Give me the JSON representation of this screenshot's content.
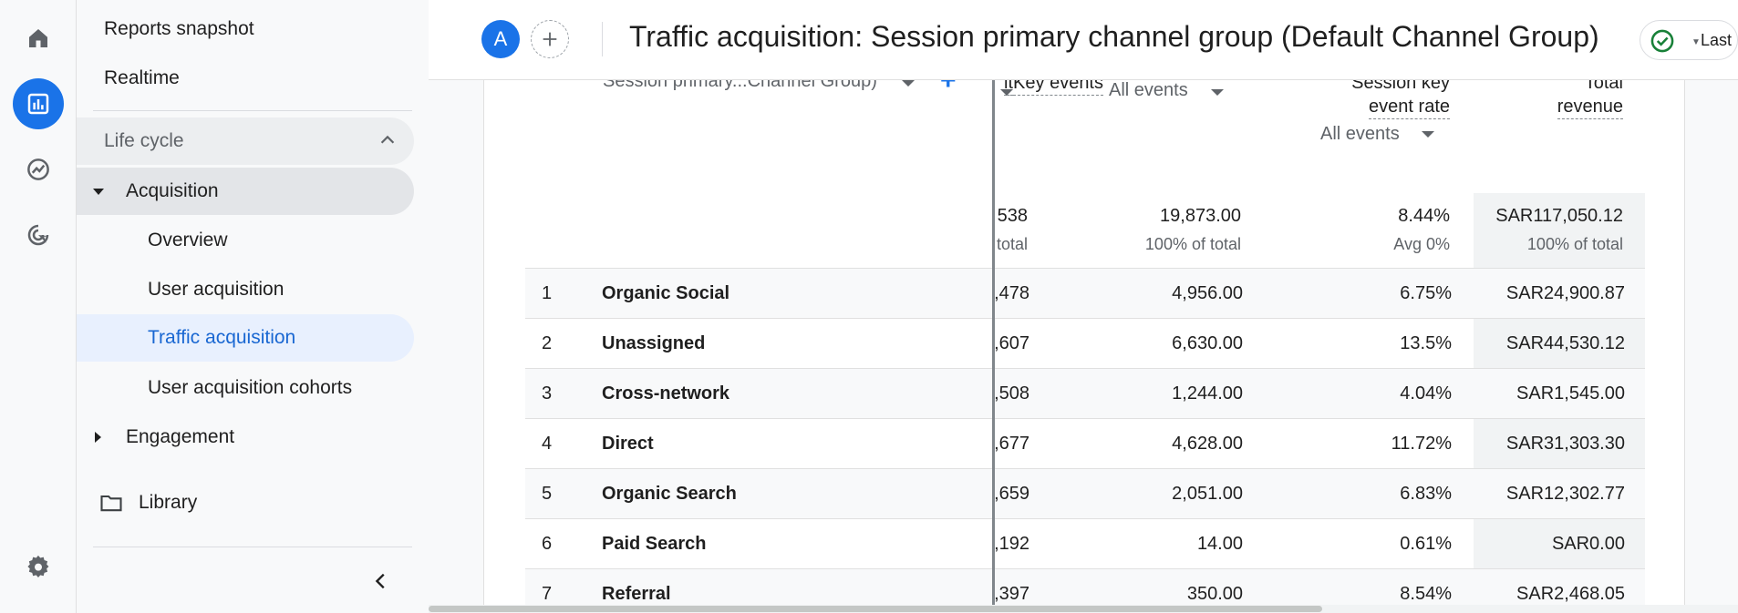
{
  "rail": {
    "items": [
      {
        "name": "home-icon"
      },
      {
        "name": "reports-icon"
      },
      {
        "name": "explore-icon"
      },
      {
        "name": "advertising-icon"
      },
      {
        "name": "settings-icon"
      }
    ]
  },
  "nav": {
    "reports_snapshot": "Reports snapshot",
    "realtime": "Realtime",
    "lifecycle": "Life cycle",
    "acquisition": "Acquisition",
    "sub_items": [
      "Overview",
      "User acquisition",
      "Traffic acquisition",
      "User acquisition cohorts"
    ],
    "selected": "Traffic acquisition",
    "engagement": "Engagement",
    "library": "Library"
  },
  "header": {
    "avatar_letter": "A",
    "title": "Traffic acquisition: Session primary channel group (Default Channel Group)",
    "status_text": "Last"
  },
  "table": {
    "dimension_header": "Session primary...Channel Group)",
    "col_partial_header": "it",
    "key_events_header": "Key events",
    "key_events_filter": "All events",
    "rate_header_line1": "Session key",
    "rate_header_line2": "event rate",
    "rate_filter": "All events",
    "revenue_header_line1": "Total",
    "revenue_header_line2": "revenue",
    "totals": {
      "partial": "538",
      "partial_sub": "total",
      "key_events": "19,873.00",
      "key_events_sub": "100% of total",
      "rate": "8.44%",
      "rate_sub": "Avg 0%",
      "revenue": "SAR117,050.12",
      "revenue_sub": "100% of total"
    },
    "rows": [
      {
        "idx": "1",
        "channel": "Organic Social",
        "partial": ",478",
        "key_events": "4,956.00",
        "rate": "6.75%",
        "revenue": "SAR24,900.87"
      },
      {
        "idx": "2",
        "channel": "Unassigned",
        "partial": ",607",
        "key_events": "6,630.00",
        "rate": "13.5%",
        "revenue": "SAR44,530.12"
      },
      {
        "idx": "3",
        "channel": "Cross-network",
        "partial": ",508",
        "key_events": "1,244.00",
        "rate": "4.04%",
        "revenue": "SAR1,545.00"
      },
      {
        "idx": "4",
        "channel": "Direct",
        "partial": ",677",
        "key_events": "4,628.00",
        "rate": "11.72%",
        "revenue": "SAR31,303.30"
      },
      {
        "idx": "5",
        "channel": "Organic Search",
        "partial": ",659",
        "key_events": "2,051.00",
        "rate": "6.83%",
        "revenue": "SAR12,302.77"
      },
      {
        "idx": "6",
        "channel": "Paid Search",
        "partial": ",192",
        "key_events": "14.00",
        "rate": "0.61%",
        "revenue": "SAR0.00"
      },
      {
        "idx": "7",
        "channel": "Referral",
        "partial": ",397",
        "key_events": "350.00",
        "rate": "8.54%",
        "revenue": "SAR2,468.05"
      }
    ]
  },
  "colors": {
    "accent": "#1a73e8",
    "selected_bg": "#e8f0fe",
    "selected_text": "#1967d2",
    "status_ok": "#188038"
  }
}
